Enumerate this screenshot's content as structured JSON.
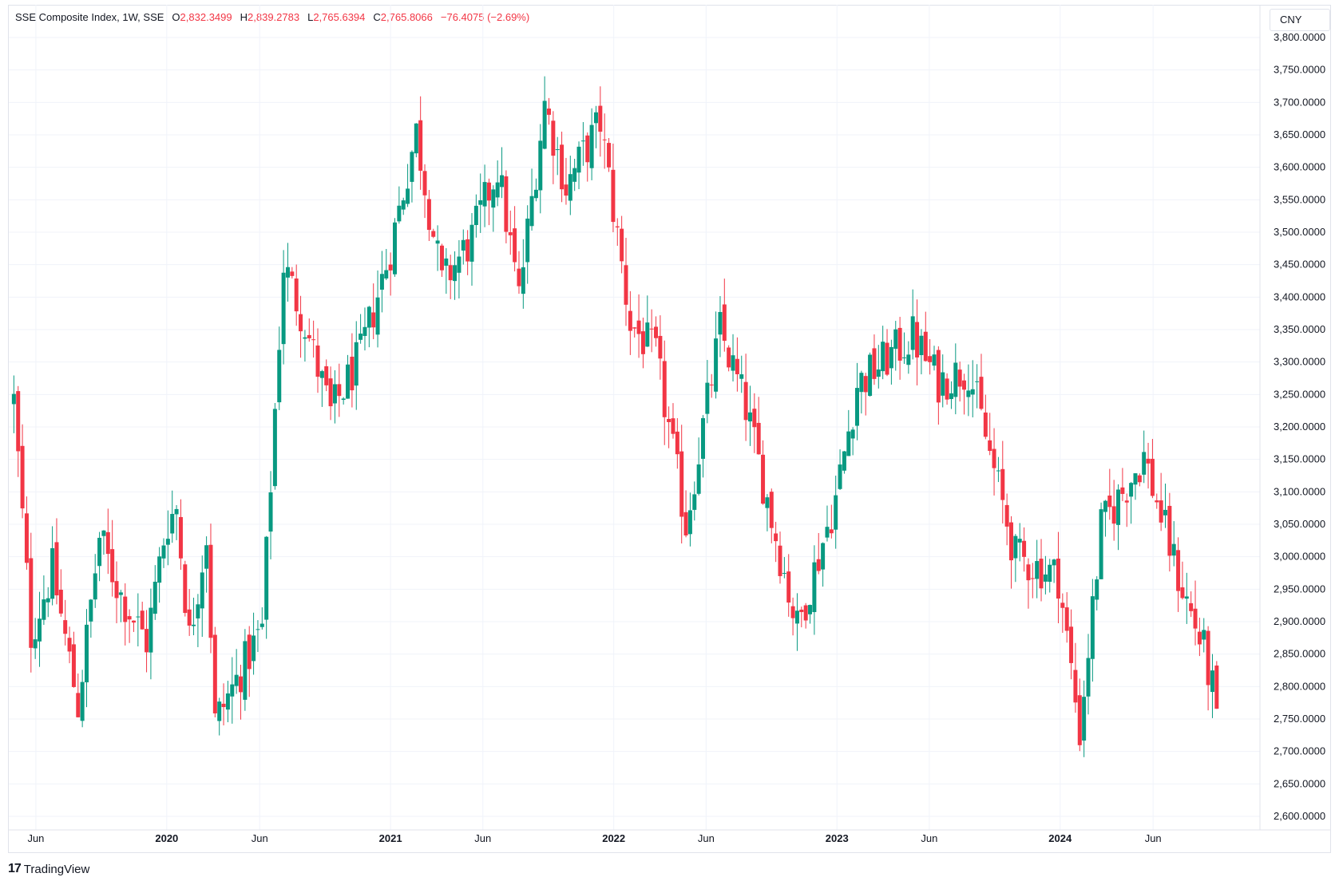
{
  "header": {
    "symbol": "SSE Composite Index, 1W, SSE",
    "open_label": "O",
    "open": "2,832.3499",
    "high_label": "H",
    "high": "2,839.2783",
    "low_label": "L",
    "low": "2,765.6394",
    "close_label": "C",
    "close": "2,765.8066",
    "change": "−76.4075 (−2.69%)"
  },
  "currency": "CNY",
  "branding": {
    "logo_mark": "17",
    "name": "TradingView"
  },
  "colors": {
    "up": "#089981",
    "down": "#f23645",
    "grid": "#f0f3fa",
    "text": "#131722"
  },
  "chart_data": {
    "type": "candlestick",
    "title": "SSE Composite Index, 1W, SSE",
    "ylim": [
      2600,
      3800
    ],
    "y_ticks": [
      "3,800.0000",
      "3,750.0000",
      "3,700.0000",
      "3,650.0000",
      "3,600.0000",
      "3,550.0000",
      "3,500.0000",
      "3,450.0000",
      "3,400.0000",
      "3,350.0000",
      "3,300.0000",
      "3,250.0000",
      "3,200.0000",
      "3,150.0000",
      "3,100.0000",
      "3,050.0000",
      "3,000.0000",
      "2,950.0000",
      "2,900.0000",
      "2,850.0000",
      "2,800.0000",
      "2,750.0000",
      "2,700.0000",
      "2,650.0000",
      "2,600.0000"
    ],
    "x_ticks": [
      {
        "label": "Jun",
        "date": "2019-06-01",
        "bold": false
      },
      {
        "label": "2020",
        "date": "2020-01-01",
        "bold": true
      },
      {
        "label": "Jun",
        "date": "2020-06-01",
        "bold": false
      },
      {
        "label": "2021",
        "date": "2021-01-01",
        "bold": true
      },
      {
        "label": "Jun",
        "date": "2021-06-01",
        "bold": false
      },
      {
        "label": "2022",
        "date": "2022-01-01",
        "bold": true
      },
      {
        "label": "Jun",
        "date": "2022-06-01",
        "bold": false
      },
      {
        "label": "2023",
        "date": "2023-01-01",
        "bold": true
      },
      {
        "label": "Jun",
        "date": "2023-06-01",
        "bold": false
      },
      {
        "label": "2024",
        "date": "2024-01-01",
        "bold": true
      },
      {
        "label": "Jun",
        "date": "2024-06-01",
        "bold": false
      }
    ],
    "x_range": [
      "2019-04-19",
      "2024-10-25"
    ],
    "series": [
      {
        "name": "SSE Composite Index",
        "close_path": [
          [
            "2019-04-26",
            3240
          ],
          [
            "2019-05-24",
            2880
          ],
          [
            "2019-06-28",
            2980
          ],
          [
            "2019-08-09",
            2770
          ],
          [
            "2019-09-13",
            3030
          ],
          [
            "2019-10-18",
            2940
          ],
          [
            "2019-11-29",
            2870
          ],
          [
            "2019-12-31",
            3050
          ],
          [
            "2020-01-17",
            3075
          ],
          [
            "2020-02-07",
            2875
          ],
          [
            "2020-03-06",
            3035
          ],
          [
            "2020-03-20",
            2745
          ],
          [
            "2020-04-24",
            2810
          ],
          [
            "2020-06-05",
            2890
          ],
          [
            "2020-07-10",
            3450
          ],
          [
            "2020-08-14",
            3360
          ],
          [
            "2020-09-25",
            3220
          ],
          [
            "2020-11-13",
            3310
          ],
          [
            "2020-12-31",
            3470
          ],
          [
            "2021-02-12",
            3655
          ],
          [
            "2021-03-26",
            3420
          ],
          [
            "2021-05-14",
            3490
          ],
          [
            "2021-06-25",
            3600
          ],
          [
            "2021-07-30",
            3400
          ],
          [
            "2021-09-10",
            3700
          ],
          [
            "2021-10-15",
            3570
          ],
          [
            "2021-12-10",
            3670
          ],
          [
            "2022-01-28",
            3360
          ],
          [
            "2022-03-11",
            3310
          ],
          [
            "2022-04-29",
            3050
          ],
          [
            "2022-06-24",
            3350
          ],
          [
            "2022-08-05",
            3230
          ],
          [
            "2022-10-28",
            2890
          ],
          [
            "2022-12-30",
            3090
          ],
          [
            "2023-02-03",
            3265
          ],
          [
            "2023-05-05",
            3340
          ],
          [
            "2023-06-16",
            3270
          ],
          [
            "2023-08-04",
            3290
          ],
          [
            "2023-10-20",
            3000
          ],
          [
            "2023-12-29",
            2970
          ],
          [
            "2024-02-02",
            2730
          ],
          [
            "2024-03-08",
            3045
          ],
          [
            "2024-05-17",
            3155
          ],
          [
            "2024-07-12",
            2970
          ],
          [
            "2024-08-23",
            2855
          ],
          [
            "2024-09-13",
            2765
          ]
        ]
      }
    ],
    "last_candle": {
      "open": 2832.3499,
      "high": 2839.2783,
      "low": 2765.6394,
      "close": 2765.8066
    },
    "ylabel": "",
    "xlabel": "",
    "grid": true,
    "legend": "none"
  }
}
